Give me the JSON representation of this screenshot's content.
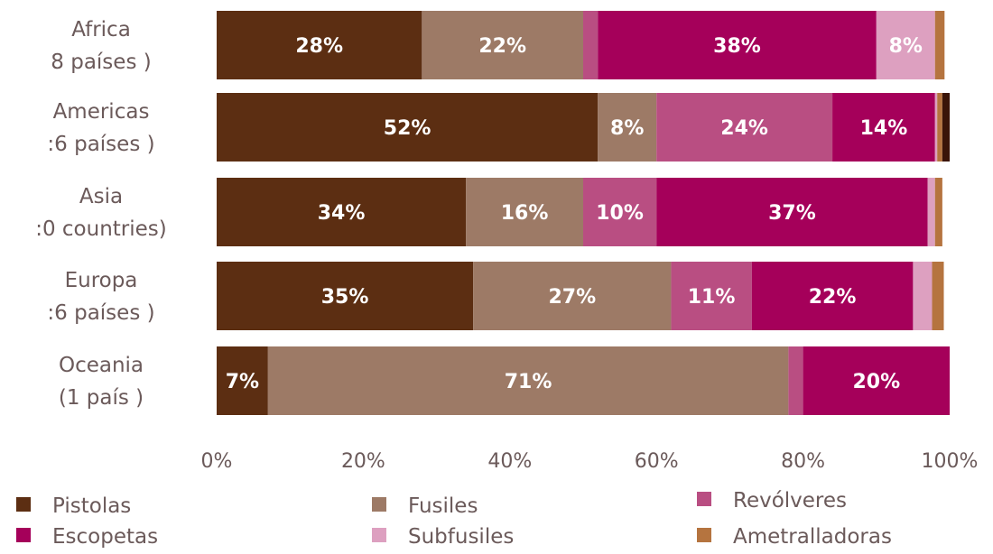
{
  "chart_data": {
    "type": "bar",
    "orientation": "horizontal",
    "stacked": "percent",
    "categories": [
      [
        "Africa",
        "8  países     )"
      ],
      [
        "Americas",
        ":6  países     )"
      ],
      [
        "Asia",
        ":0 countries)"
      ],
      [
        "Europa",
        ":6  países     )"
      ],
      [
        "Oceania",
        "(1      país     )"
      ]
    ],
    "series": [
      {
        "name": "Pistolas",
        "color": "#5c2e12",
        "values": [
          28,
          52,
          34,
          35,
          7
        ],
        "labels": [
          "28%",
          "52%",
          "34%",
          "35%",
          "7%"
        ]
      },
      {
        "name": "Fusiles",
        "color": "#9d7a66",
        "values": [
          22,
          8,
          16,
          27,
          71
        ],
        "labels": [
          "22%",
          "8%",
          "16%",
          "27%",
          "71%"
        ]
      },
      {
        "name": "Revólveres",
        "color": "#b94e82",
        "values": [
          2,
          24,
          10,
          11,
          2
        ],
        "labels": [
          "",
          "24%",
          "10%",
          "11%",
          ""
        ]
      },
      {
        "name": "Escopetas",
        "color": "#a5005a",
        "values": [
          38,
          14,
          37,
          22,
          20
        ],
        "labels": [
          "38%",
          "14%",
          "37%",
          "22%",
          "20%"
        ]
      },
      {
        "name": "Subfusiles",
        "color": "#dda0c0",
        "values": [
          8,
          0.3,
          1,
          2.6,
          0
        ],
        "labels": [
          "8%",
          "",
          "",
          "",
          ""
        ]
      },
      {
        "name": "Ametralladoras",
        "color": "#b5743f",
        "values": [
          1.3,
          0.7,
          1,
          1.6,
          0
        ],
        "labels": [
          "",
          "",
          "",
          "",
          ""
        ]
      }
    ],
    "extra_segment": {
      "category_index": 1,
      "value": 1,
      "color": "#3a1408"
    },
    "x_ticks": [
      "0%",
      "20%",
      "40%",
      "60%",
      "80%",
      "100%"
    ],
    "xlim": [
      0,
      100
    ],
    "legend": {
      "placement": "bottom",
      "items": [
        "Pistolas",
        "Fusiles",
        "Revólveres",
        "Escopetas",
        "Subfusiles",
        "Ametralladoras"
      ]
    },
    "grid": false
  }
}
